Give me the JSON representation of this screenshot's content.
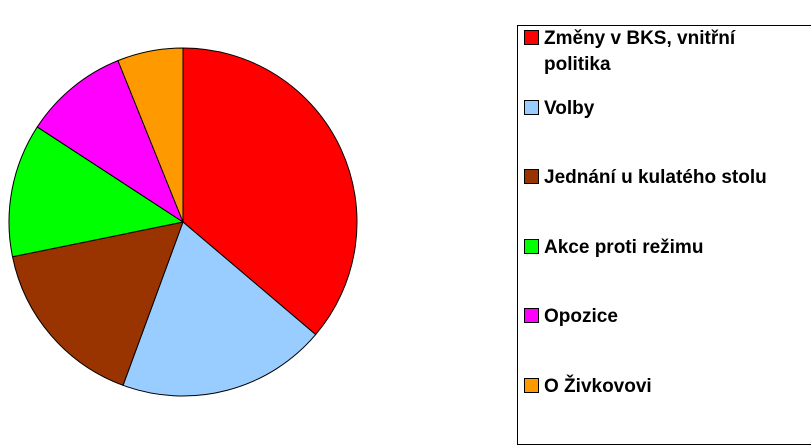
{
  "chart_data": {
    "type": "pie",
    "categories": [
      "Změny v BKS, vnitřní politika",
      "Volby",
      "Jednání u kulatého stolu",
      "Akce proti režimu",
      "Opozice",
      "O Živkovovi"
    ],
    "values": [
      36.2,
      19.4,
      16.2,
      12.4,
      9.7,
      6.1
    ],
    "colors": [
      "#ff0000",
      "#99ccff",
      "#993300",
      "#00ff00",
      "#ff00ff",
      "#ff9900"
    ],
    "legend": "right"
  }
}
